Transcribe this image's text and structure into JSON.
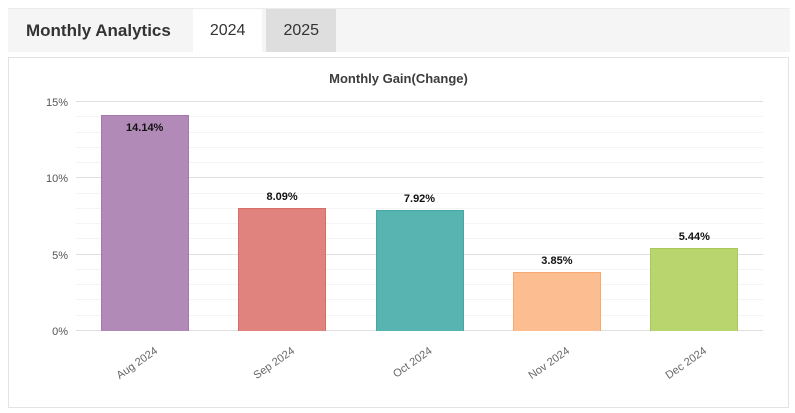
{
  "header": {
    "title": "Monthly Analytics",
    "tabs": [
      {
        "label": "2024",
        "selected": true
      },
      {
        "label": "2025",
        "selected": false
      }
    ]
  },
  "chart_data": {
    "type": "bar",
    "title": "Monthly Gain(Change)",
    "categories": [
      "Aug 2024",
      "Sep 2024",
      "Oct 2024",
      "Nov 2024",
      "Dec 2024"
    ],
    "values": [
      14.14,
      8.09,
      7.92,
      3.85,
      5.44
    ],
    "value_labels": [
      "14.14%",
      "8.09%",
      "7.92%",
      "3.85%",
      "5.44%"
    ],
    "bar_colors": [
      "#b28ab8",
      "#e0827d",
      "#58b4b0",
      "#fcbe90",
      "#b9d56e"
    ],
    "bar_border_colors": [
      "#a678ae",
      "#d96e68",
      "#47a7a3",
      "#f8a871",
      "#a9c95b"
    ],
    "xlabel": "",
    "ylabel": "",
    "ylim": [
      0,
      15
    ],
    "ytick_labels": [
      "0%",
      "5%",
      "10%",
      "15%"
    ],
    "y_major_step": 5,
    "y_minor_step": 1,
    "grid": true,
    "legend": "none"
  }
}
